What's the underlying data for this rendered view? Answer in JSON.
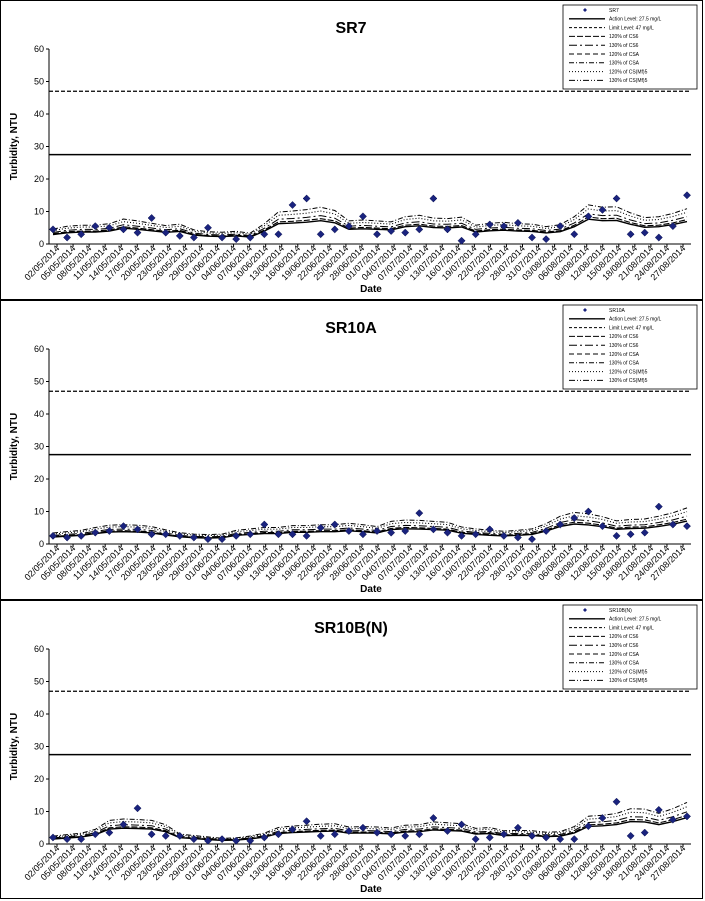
{
  "chart_data": [
    {
      "type": "line",
      "title": "SR7",
      "xlabel": "Date",
      "ylabel": "Turbidity, NTU",
      "ylim": [
        0,
        60
      ],
      "yticks": [
        0,
        10,
        20,
        30,
        40,
        50,
        60
      ],
      "grid": false,
      "legend_position": "top-right",
      "x_tick_labels": [
        "02/05/2014",
        "05/05/2014",
        "08/05/2014",
        "11/05/2014",
        "14/05/2014",
        "17/05/2014",
        "20/05/2014",
        "23/05/2014",
        "26/05/2014",
        "29/05/2014",
        "01/06/2014",
        "04/06/2014",
        "07/06/2014",
        "10/06/2014",
        "13/06/2014",
        "16/06/2014",
        "19/06/2014",
        "22/06/2014",
        "25/06/2014",
        "28/06/2014",
        "01/07/2014",
        "04/07/2014",
        "07/07/2014",
        "10/07/2014",
        "13/07/2014",
        "16/07/2014",
        "19/07/2014",
        "22/07/2014",
        "25/07/2014",
        "28/07/2014",
        "31/07/2014",
        "03/08/2014",
        "06/08/2014",
        "09/08/2014",
        "12/08/2014",
        "15/08/2014",
        "18/08/2014",
        "21/08/2014",
        "24/08/2014",
        "27/08/2014"
      ],
      "series": [
        {
          "name": "SR7",
          "style": "diamond",
          "values": [
            4.5,
            2.0,
            3.0,
            5.5,
            5.0,
            4.5,
            3.5,
            8.0,
            3.5,
            2.5,
            2.0,
            5.0,
            2.0,
            1.5,
            2.0,
            3.0,
            3.0,
            12.0,
            14.0,
            3.0,
            4.5,
            5.5,
            8.5,
            3.0,
            4.0,
            3.5,
            4.5,
            14.0,
            4.5,
            1.0,
            3.0,
            6.0,
            5.5,
            6.5,
            2.0,
            1.5,
            5.5,
            3.0,
            8.5,
            10.5,
            14.0,
            3.0,
            3.5,
            2.0,
            5.5,
            15.0
          ]
        },
        {
          "name": "Action Level: 27.5 mg/L",
          "style": "solid-hline",
          "value": 27.5
        },
        {
          "name": "Limit Level: 47 mg/L",
          "style": "dashed-hline",
          "value": 47
        }
      ],
      "legend": [
        "SR7",
        "Action Level: 27.5 mg/L",
        "Limit Level: 47 mg/L",
        "120% of CS6",
        "130% of CS6",
        "120% of CSA",
        "130% of CSA",
        "120% of CS(Mf)5",
        "130% of CS(Mf)5"
      ]
    },
    {
      "type": "line",
      "title": "SR10A",
      "xlabel": "Date",
      "ylabel": "Turbidity, NTU",
      "ylim": [
        0,
        60
      ],
      "yticks": [
        0,
        10,
        20,
        30,
        40,
        50,
        60
      ],
      "grid": false,
      "legend_position": "top-right",
      "x_tick_labels": [
        "02/05/2014",
        "05/05/2014",
        "08/05/2014",
        "11/05/2014",
        "14/05/2014",
        "17/05/2014",
        "20/05/2014",
        "23/05/2014",
        "26/05/2014",
        "29/05/2014",
        "01/06/2014",
        "04/06/2014",
        "07/06/2014",
        "10/06/2014",
        "13/06/2014",
        "16/06/2014",
        "19/06/2014",
        "22/06/2014",
        "25/06/2014",
        "28/06/2014",
        "01/07/2014",
        "04/07/2014",
        "07/07/2014",
        "10/07/2014",
        "13/07/2014",
        "16/07/2014",
        "19/07/2014",
        "22/07/2014",
        "25/07/2014",
        "28/07/2014",
        "31/07/2014",
        "03/08/2014",
        "06/08/2014",
        "09/08/2014",
        "12/08/2014",
        "15/08/2014",
        "18/08/2014",
        "21/08/2014",
        "24/08/2014",
        "27/08/2014"
      ],
      "series": [
        {
          "name": "SR10A",
          "style": "diamond",
          "values": [
            2.5,
            2.0,
            2.5,
            3.5,
            4.0,
            5.5,
            4.5,
            3.0,
            3.0,
            2.5,
            2.0,
            1.5,
            1.5,
            2.5,
            3.0,
            6.0,
            3.0,
            3.0,
            2.5,
            5.0,
            6.0,
            4.0,
            3.0,
            4.0,
            3.5,
            4.0,
            9.5,
            4.5,
            3.5,
            2.5,
            3.0,
            4.5,
            2.5,
            2.0,
            1.5,
            4.0,
            6.0,
            8.0,
            10.0,
            5.5,
            2.5,
            3.0,
            3.5,
            11.5,
            6.0,
            5.5
          ]
        },
        {
          "name": "Action Level: 27.5 mg/L",
          "style": "solid-hline",
          "value": 27.5
        },
        {
          "name": "Limit Level: 47 mg/L",
          "style": "dashed-hline",
          "value": 47
        }
      ],
      "legend": [
        "SR10A",
        "Action Level: 27.5 mg/L",
        "Limit Level: 47 mg/L",
        "120% of CS6",
        "130% of CS6",
        "120% of CSA",
        "130% of CSA",
        "120% of CS(Mf)5",
        "130% of CS(Mf)5"
      ]
    },
    {
      "type": "line",
      "title": "SR10B(N)",
      "xlabel": "Date",
      "ylabel": "Turbidity, NTU",
      "ylim": [
        0,
        60
      ],
      "yticks": [
        0,
        10,
        20,
        30,
        40,
        50,
        60
      ],
      "grid": false,
      "legend_position": "top-right",
      "x_tick_labels": [
        "02/05/2014",
        "05/05/2014",
        "08/05/2014",
        "11/05/2014",
        "14/05/2014",
        "17/05/2014",
        "20/05/2014",
        "23/05/2014",
        "26/05/2014",
        "29/05/2014",
        "01/06/2014",
        "04/06/2014",
        "07/06/2014",
        "10/06/2014",
        "13/06/2014",
        "16/06/2014",
        "19/06/2014",
        "22/06/2014",
        "25/06/2014",
        "28/06/2014",
        "01/07/2014",
        "04/07/2014",
        "07/07/2014",
        "10/07/2014",
        "13/07/2014",
        "16/07/2014",
        "19/07/2014",
        "22/07/2014",
        "25/07/2014",
        "28/07/2014",
        "31/07/2014",
        "03/08/2014",
        "06/08/2014",
        "09/08/2014",
        "12/08/2014",
        "15/08/2014",
        "18/08/2014",
        "21/08/2014",
        "24/08/2014",
        "27/08/2014"
      ],
      "series": [
        {
          "name": "SR10B(N)",
          "style": "diamond",
          "values": [
            2.0,
            1.5,
            1.5,
            3.0,
            3.5,
            6.0,
            11.0,
            3.0,
            2.5,
            2.5,
            1.5,
            1.0,
            1.5,
            1.0,
            1.0,
            2.0,
            3.0,
            4.5,
            7.0,
            2.5,
            3.0,
            4.0,
            5.0,
            3.5,
            3.0,
            2.5,
            3.0,
            8.0,
            4.0,
            6.0,
            1.5,
            2.0,
            3.0,
            5.0,
            2.5,
            2.0,
            1.5,
            1.5,
            5.5,
            8.0,
            13.0,
            2.5,
            3.5,
            10.5,
            7.5,
            8.5
          ]
        },
        {
          "name": "Action Level: 27.5 mg/L",
          "style": "solid-hline",
          "value": 27.5
        },
        {
          "name": "Limit Level: 47 mg/L",
          "style": "dashed-hline",
          "value": 47
        }
      ],
      "legend": [
        "SR10B(N)",
        "Action Level: 27.5 mg/L",
        "Limit Level: 47 mg/L",
        "120% of CS6",
        "130% of CS6",
        "120% of CSA",
        "130% of CSA",
        "120% of CS(Mf)5",
        "130% of CS(Mf)5"
      ]
    }
  ]
}
